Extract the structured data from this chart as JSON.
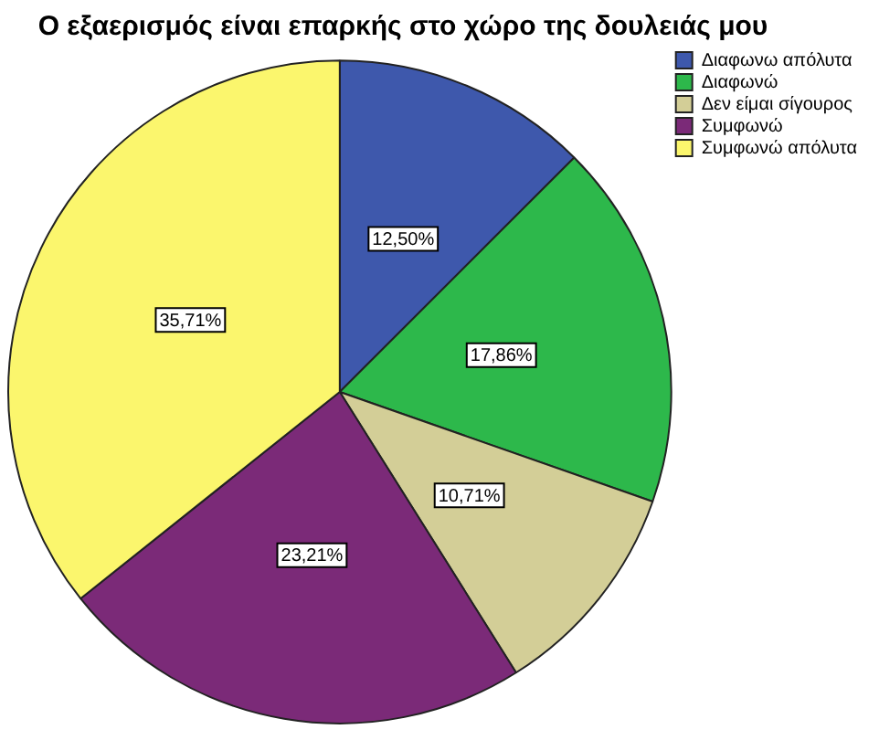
{
  "chart_data": {
    "type": "pie",
    "title": "Ο εξαερισμός είναι επαρκής στο χώρο της δουλειάς μου",
    "categories": [
      "Διαφωνω απόλυτα",
      "Διαφωνώ",
      "Δεν είμαι σίγουρος",
      "Συμφωνώ",
      "Συμφωνώ απόλυτα"
    ],
    "values": [
      12.5,
      17.86,
      10.71,
      23.21,
      35.71
    ],
    "value_labels": [
      "12,50%",
      "17,86%",
      "10,71%",
      "23,21%",
      "35,71%"
    ],
    "colors": [
      "#3e58ac",
      "#2db84b",
      "#d3ce97",
      "#7b2a78",
      "#fbf66d"
    ],
    "legend": "top right"
  }
}
